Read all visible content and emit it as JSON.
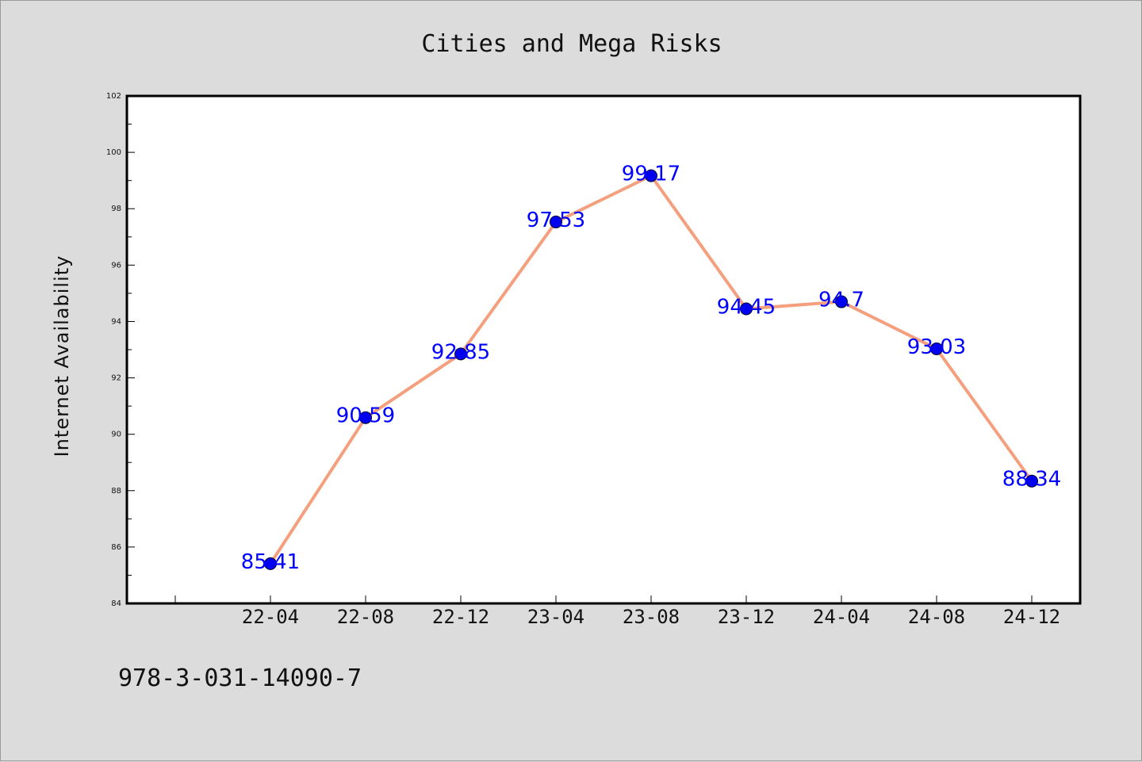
{
  "colors": {
    "background": "#dcdcdc",
    "plot_background": "#ffffff",
    "line": "#f4a07e",
    "marker": "#0000ee",
    "data_label": "#0000ff"
  },
  "isbn": "978-3-031-14090-7",
  "chart_data": {
    "type": "line",
    "title": "Cities and Mega Risks",
    "xlabel": "",
    "ylabel": "Internet Availability",
    "categories": [
      "22-04",
      "22-08",
      "22-12",
      "23-04",
      "23-08",
      "23-12",
      "24-04",
      "24-08",
      "24-12"
    ],
    "series": [
      {
        "values": [
          85.41,
          90.59,
          92.85,
          97.53,
          99.17,
          94.45,
          94.7,
          93.03,
          88.34
        ]
      }
    ],
    "data_labels": [
      "85.41",
      "90.59",
      "92.85",
      "97.53",
      "99.17",
      "94.45",
      "94.7",
      "93.03",
      "88.34"
    ],
    "ylim": [
      84,
      102
    ],
    "yticks": [
      "84",
      "86",
      "88",
      "90",
      "92",
      "94",
      "96",
      "98",
      "100",
      "102"
    ],
    "grid": false,
    "legend": "none"
  }
}
